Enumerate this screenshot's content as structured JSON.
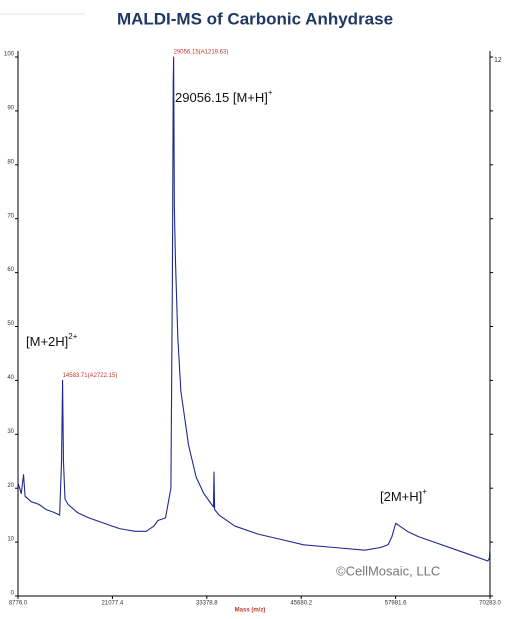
{
  "chart_data": {
    "type": "line",
    "title": "MALDI-MS of Carbonic Anhydrase",
    "xlabel": "Mass (m/z)",
    "right_axis_label": "12",
    "xlim": [
      8776,
      70283
    ],
    "ylim": [
      0,
      100
    ],
    "xticks": [
      {
        "value": 8776,
        "label": "8776.0"
      },
      21077.4,
      33378.8,
      45680.2,
      57981.6,
      {
        "value": 70283,
        "label": "70283.0"
      }
    ],
    "yticks": [
      0,
      10,
      20,
      30,
      40,
      50,
      60,
      70,
      80,
      90,
      100
    ],
    "series": [
      {
        "name": "spectrum",
        "color": "#1f2a8f",
        "x": [
          8776,
          9200,
          9500,
          9700,
          10500,
          11500,
          12500,
          13500,
          14200,
          14450,
          14583.71,
          14700,
          14900,
          15300,
          16500,
          18000,
          20000,
          22000,
          24000,
          25500,
          26500,
          27000,
          28000,
          28700,
          28900,
          29000,
          29056.15,
          29150,
          29300,
          29600,
          30000,
          31000,
          32000,
          33000,
          34000,
          34250,
          34315,
          34400,
          35000,
          37000,
          40000,
          43000,
          46000,
          50000,
          54000,
          56000,
          57000,
          57500,
          58000,
          58500,
          59500,
          61000,
          63000,
          66000,
          68000,
          70000,
          70200,
          70283
        ],
        "values": [
          21,
          19,
          22.5,
          18.5,
          17.5,
          17,
          16,
          15.5,
          15,
          25,
          40,
          25,
          18,
          17,
          15.5,
          14.5,
          13.5,
          12.5,
          12,
          12,
          13,
          14,
          14.5,
          20,
          60,
          95,
          100,
          72,
          62,
          48,
          38,
          28,
          22,
          19,
          17,
          16.5,
          23,
          16,
          15,
          13,
          11.5,
          10.5,
          9.5,
          9,
          8.5,
          9,
          9.5,
          11,
          13.5,
          13,
          12,
          11,
          10,
          8.5,
          7.5,
          6.5,
          7,
          9
        ]
      }
    ],
    "peak_labels": [
      {
        "x": 29056.15,
        "y": 100,
        "text": "29056.15(A1219.63)"
      },
      {
        "x": 14583.71,
        "y": 40,
        "text": "14583.71(A2722.15)"
      }
    ],
    "annotations": [
      {
        "text": "29056.15 [M+H]",
        "sup": "+"
      },
      {
        "text": "[M+2H]",
        "sup": "2+"
      },
      {
        "text": "[2M+H]",
        "sup": "+"
      }
    ],
    "watermark": "©CellMosaic, LLC"
  }
}
